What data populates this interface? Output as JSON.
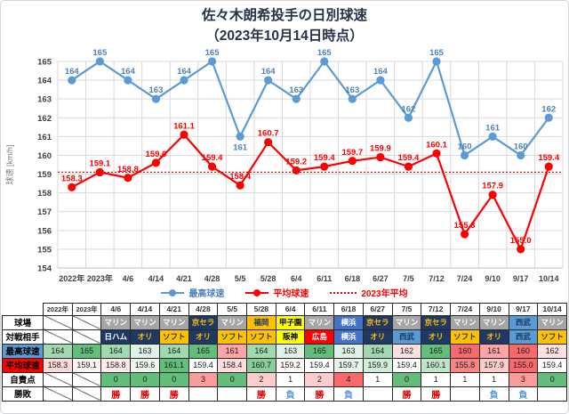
{
  "title": {
    "line1": "佐々木朗希投手の日別球速",
    "line2": "（2023年10月14日時点）"
  },
  "chart_data": {
    "type": "line",
    "categories": [
      "2022年",
      "2023年",
      "4/6",
      "4/14",
      "4/21",
      "4/28",
      "5/5",
      "5/28",
      "6/4",
      "6/11",
      "6/18",
      "6/27",
      "7/5",
      "7/12",
      "7/24",
      "9/10",
      "9/17",
      "10/14"
    ],
    "series": [
      {
        "name": "最高球速",
        "color": "#5B9BD5",
        "label_color": "#4E81BD",
        "values": [
          164,
          165,
          164,
          163,
          164,
          165,
          161,
          164,
          163,
          165,
          163,
          164,
          162,
          165,
          160,
          161,
          160,
          162
        ],
        "label_below_indices": [
          6
        ]
      },
      {
        "name": "平均球速",
        "color": "#FF0000",
        "label_color": "#FF0000",
        "values": [
          158.3,
          159.1,
          158.8,
          159.6,
          161.1,
          159.4,
          158.4,
          160.7,
          159.2,
          159.4,
          159.7,
          159.9,
          159.4,
          160.1,
          155.8,
          157.9,
          155.0,
          159.4
        ],
        "labels": [
          "158.3",
          "159.1",
          "158.8",
          "159.6",
          "161.1",
          "159.4",
          "158.4",
          "160.7",
          "159.2",
          "159.4",
          "159.7",
          "159.9",
          "159.4",
          "160.1",
          "155.8",
          "157.9",
          "155.0",
          "159.4"
        ],
        "label_below_indices": []
      }
    ],
    "reference_line": {
      "name": "2023年平均",
      "value": 159.1,
      "color": "#FF0000",
      "style": "dotted"
    },
    "ylabel": "球速 [km/h]",
    "ylim": [
      154,
      165
    ],
    "ytick_step": 1,
    "grid": true,
    "gridline_color": "#D9D9D9",
    "axis_color": "#BFBFBF",
    "legend_position": "bottom"
  },
  "table": {
    "corner": "",
    "header": [
      "2022年",
      "2023年",
      "4/6",
      "4/14",
      "4/21",
      "4/28",
      "5/5",
      "5/28",
      "6/4",
      "6/11",
      "6/18",
      "6/27",
      "7/5",
      "7/12",
      "7/24",
      "9/10",
      "9/17",
      "10/14"
    ],
    "rows": [
      {
        "key": "stadium",
        "label": "球場",
        "label_bg": "#FFFFFF",
        "label_fg": "#000000",
        "type": "team",
        "cells": [
          {
            "diag": true
          },
          {
            "diag": true
          },
          {
            "t": "マリン",
            "bg": "#A6A6A6",
            "fg": "#FFFFFF"
          },
          {
            "t": "マリン",
            "bg": "#A6A6A6",
            "fg": "#FFFFFF"
          },
          {
            "t": "マリン",
            "bg": "#A6A6A6",
            "fg": "#FFFFFF"
          },
          {
            "t": "京セラ",
            "bg": "#1F3864",
            "fg": "#FFC000"
          },
          {
            "t": "マリン",
            "bg": "#A6A6A6",
            "fg": "#FFFFFF"
          },
          {
            "t": "福岡",
            "bg": "#FFC000",
            "fg": "#1F3864"
          },
          {
            "t": "甲子園",
            "bg": "#FFFF00",
            "fg": "#000000"
          },
          {
            "t": "マリン",
            "bg": "#A6A6A6",
            "fg": "#FFFFFF"
          },
          {
            "t": "横浜",
            "bg": "#4472C4",
            "fg": "#FFFFFF"
          },
          {
            "t": "京セラ",
            "bg": "#1F3864",
            "fg": "#FFC000"
          },
          {
            "t": "マリン",
            "bg": "#A6A6A6",
            "fg": "#FFFFFF"
          },
          {
            "t": "京セラ",
            "bg": "#1F3864",
            "fg": "#FFC000"
          },
          {
            "t": "マリン",
            "bg": "#A6A6A6",
            "fg": "#FFFFFF"
          },
          {
            "t": "マリン",
            "bg": "#A6A6A6",
            "fg": "#FFFFFF"
          },
          {
            "t": "西武",
            "bg": "#5B9BD5",
            "fg": "#17375E"
          },
          {
            "t": "マリン",
            "bg": "#A6A6A6",
            "fg": "#FFFFFF"
          }
        ]
      },
      {
        "key": "opponent",
        "label": "対戦相手",
        "label_bg": "#FFFFFF",
        "label_fg": "#000000",
        "type": "team",
        "cells": [
          {
            "diag": true
          },
          {
            "diag": true
          },
          {
            "t": "日ハム",
            "bg": "#1F3864",
            "fg": "#FFFFFF"
          },
          {
            "t": "オリ",
            "bg": "#1F3864",
            "fg": "#FFC000"
          },
          {
            "t": "ソフト",
            "bg": "#FFC000",
            "fg": "#1F3864"
          },
          {
            "t": "オリ",
            "bg": "#1F3864",
            "fg": "#FFC000"
          },
          {
            "t": "ソフト",
            "bg": "#FFC000",
            "fg": "#1F3864"
          },
          {
            "t": "ソフト",
            "bg": "#FFC000",
            "fg": "#1F3864"
          },
          {
            "t": "阪神",
            "bg": "#FFFF00",
            "fg": "#000000"
          },
          {
            "t": "広島",
            "bg": "#FF0000",
            "fg": "#FFFFFF"
          },
          {
            "t": "横浜",
            "bg": "#4472C4",
            "fg": "#FFFFFF"
          },
          {
            "t": "オリ",
            "bg": "#1F3864",
            "fg": "#FFC000"
          },
          {
            "t": "西武",
            "bg": "#5B9BD5",
            "fg": "#17375E"
          },
          {
            "t": "オリ",
            "bg": "#1F3864",
            "fg": "#FFC000"
          },
          {
            "t": "ソフト",
            "bg": "#FFC000",
            "fg": "#1F3864"
          },
          {
            "t": "オリ",
            "bg": "#1F3864",
            "fg": "#FFC000"
          },
          {
            "t": "西武",
            "bg": "#5B9BD5",
            "fg": "#17375E"
          },
          {
            "t": "ソフト",
            "bg": "#FFC000",
            "fg": "#1F3864"
          }
        ]
      },
      {
        "key": "max-speed",
        "label": "最高球速",
        "label_bg": "#5B9BD5",
        "label_fg": "#000000",
        "type": "value",
        "cells": [
          {
            "t": "164",
            "bg": "#A1D8B0"
          },
          {
            "t": "165",
            "bg": "#63BE7B"
          },
          {
            "t": "164",
            "bg": "#A1D8B0"
          },
          {
            "t": "163",
            "bg": "#E0F2E5"
          },
          {
            "t": "164",
            "bg": "#A1D8B0"
          },
          {
            "t": "165",
            "bg": "#63BE7B"
          },
          {
            "t": "161",
            "bg": "#FBA5A6"
          },
          {
            "t": "164",
            "bg": "#A1D8B0"
          },
          {
            "t": "163",
            "bg": "#E0F2E5"
          },
          {
            "t": "165",
            "bg": "#63BE7B"
          },
          {
            "t": "163",
            "bg": "#E0F2E5"
          },
          {
            "t": "164",
            "bg": "#A1D8B0"
          },
          {
            "t": "162",
            "bg": "#FDE1E1"
          },
          {
            "t": "165",
            "bg": "#63BE7B"
          },
          {
            "t": "160",
            "bg": "#F8696B"
          },
          {
            "t": "161",
            "bg": "#FBA5A6"
          },
          {
            "t": "160",
            "bg": "#F8696B"
          },
          {
            "t": "162",
            "bg": "#FDE1E1"
          }
        ]
      },
      {
        "key": "avg-speed",
        "label": "平均球速",
        "label_bg": "#FF0000",
        "label_fg": "#000000",
        "type": "value",
        "cells": [
          {
            "t": "158.3",
            "bg": "#FDDADA"
          },
          {
            "t": "159.1",
            "bg": "#FEF4F4"
          },
          {
            "t": "158.8",
            "bg": "#FEEBEB"
          },
          {
            "t": "159.6",
            "bg": "#EDF7EF"
          },
          {
            "t": "161.1",
            "bg": "#63BE7B"
          },
          {
            "t": "159.4",
            "bg": "#FFFFFF"
          },
          {
            "t": "158.4",
            "bg": "#FDDDDD"
          },
          {
            "t": "160.7",
            "bg": "#88CD9A"
          },
          {
            "t": "159.2",
            "bg": "#FEF8F8"
          },
          {
            "t": "159.4",
            "bg": "#FFFFFF"
          },
          {
            "t": "159.7",
            "bg": "#E7F4EB"
          },
          {
            "t": "159.9",
            "bg": "#D1ECD8"
          },
          {
            "t": "159.4",
            "bg": "#FFFFFF"
          },
          {
            "t": "160.1",
            "bg": "#BFE4C9"
          },
          {
            "t": "155.8",
            "bg": "#F98486"
          },
          {
            "t": "157.9",
            "bg": "#FDCCCD"
          },
          {
            "t": "155.0",
            "bg": "#F8696B"
          },
          {
            "t": "159.4",
            "bg": "#FFFFFF"
          }
        ]
      },
      {
        "key": "earned-runs",
        "label": "自責点",
        "label_bg": "#FFFFFF",
        "label_fg": "#000000",
        "type": "value",
        "cells": [
          {
            "diag": true
          },
          {
            "diag": true
          },
          {
            "t": "0",
            "bg": "#63BE7B"
          },
          {
            "t": "0",
            "bg": "#63BE7B"
          },
          {
            "t": "0",
            "bg": "#63BE7B"
          },
          {
            "t": "3",
            "bg": "#FA9B9C"
          },
          {
            "t": "0",
            "bg": "#63BE7B"
          },
          {
            "t": "2",
            "bg": "#FDCDCE"
          },
          {
            "t": "1",
            "bg": "#FFFFFF"
          },
          {
            "t": "2",
            "bg": "#FDCDCE"
          },
          {
            "t": "4",
            "bg": "#F8696B"
          },
          {
            "t": "1",
            "bg": "#FFFFFF"
          },
          {
            "t": "0",
            "bg": "#63BE7B"
          },
          {
            "t": "1",
            "bg": "#FFFFFF"
          },
          {
            "t": "1",
            "bg": "#FFFFFF"
          },
          {
            "t": "1",
            "bg": "#FFFFFF"
          },
          {
            "t": "3",
            "bg": "#FA9B9C"
          },
          {
            "t": "0",
            "bg": "#63BE7B"
          }
        ]
      },
      {
        "key": "result",
        "label": "勝敗",
        "label_bg": "#FFFFFF",
        "label_fg": "#000000",
        "type": "result",
        "cells": [
          {
            "diag": true
          },
          {
            "diag": true
          },
          {
            "t": "勝",
            "fg": "#E00000"
          },
          {
            "t": "勝",
            "fg": "#E00000"
          },
          {
            "t": "勝",
            "fg": "#E00000"
          },
          {
            "t": ""
          },
          {
            "t": ""
          },
          {
            "t": "勝",
            "fg": "#E00000"
          },
          {
            "t": "負",
            "fg": "#5B9BD5"
          },
          {
            "t": "勝",
            "fg": "#E00000"
          },
          {
            "t": "負",
            "fg": "#5B9BD5"
          },
          {
            "t": ""
          },
          {
            "t": "勝",
            "fg": "#E00000"
          },
          {
            "t": "勝",
            "fg": "#E00000"
          },
          {
            "t": ""
          },
          {
            "t": "負",
            "fg": "#5B9BD5"
          },
          {
            "t": "負",
            "fg": "#5B9BD5"
          },
          {
            "t": ""
          }
        ]
      }
    ]
  }
}
